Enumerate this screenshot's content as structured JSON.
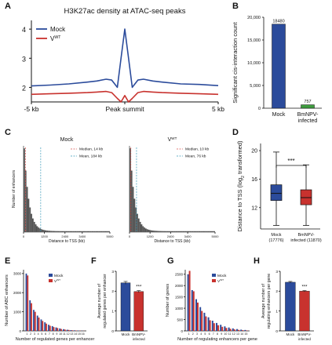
{
  "panels": [
    "A",
    "B",
    "C",
    "D",
    "E",
    "F",
    "G",
    "H"
  ],
  "colors": {
    "mock": "#2b4b9b",
    "vwt": "#c8322e",
    "gray": "#555555",
    "median_line": "#d9534f",
    "mean_line": "#3a9ab8"
  },
  "chart_data": [
    {
      "id": "A",
      "type": "line",
      "title": "H3K27ac density at ATAC-seq peaks",
      "xticks": [
        "-5 kb",
        "Peak summit",
        "5 kb"
      ],
      "yticks": [
        2,
        3,
        4
      ],
      "ylim": [
        1.5,
        4.3
      ],
      "legend": [
        {
          "name": "Mock",
          "key": "mock"
        },
        {
          "name": "VWT",
          "key": "vwt",
          "display": "V",
          "sup": "WT"
        }
      ],
      "series": [
        {
          "name": "Mock",
          "x": [
            -5,
            -4,
            -3,
            -2,
            -1.5,
            -1,
            -0.7,
            -0.4,
            -0.2,
            0,
            0.2,
            0.4,
            0.7,
            1,
            1.5,
            2,
            3,
            4,
            5
          ],
          "values": [
            2.05,
            2.08,
            2.12,
            2.18,
            2.22,
            2.28,
            2.25,
            2.0,
            3.0,
            4.0,
            3.0,
            2.0,
            2.25,
            2.28,
            2.22,
            2.18,
            2.12,
            2.1,
            2.06
          ]
        },
        {
          "name": "VWT",
          "x": [
            -5,
            -4,
            -3,
            -2,
            -1.5,
            -1,
            -0.7,
            -0.4,
            -0.2,
            0,
            0.2,
            0.4,
            0.7,
            1,
            1.5,
            2,
            3,
            4,
            5
          ],
          "values": [
            1.76,
            1.78,
            1.8,
            1.82,
            1.84,
            1.86,
            1.82,
            1.62,
            1.5,
            1.72,
            1.5,
            1.62,
            1.82,
            1.86,
            1.84,
            1.82,
            1.8,
            1.78,
            1.76
          ]
        }
      ]
    },
    {
      "id": "B",
      "type": "bar",
      "ylabel": "Significant cis-interaction count",
      "categories": [
        "Mock",
        "BmNPV-infected"
      ],
      "category_lines": [
        [
          "Mock"
        ],
        [
          "BmNPV-",
          "infected"
        ]
      ],
      "values": [
        18480,
        757
      ],
      "labels": [
        "18480",
        "757"
      ],
      "ylim": [
        0,
        20000
      ],
      "yticks": [
        "0",
        "5,000",
        "10,000",
        "15,000",
        "20,000"
      ]
    },
    {
      "id": "C",
      "type": "bar",
      "subcharts": [
        {
          "title": "Mock",
          "xlabel": "Distance to TSS (kb)",
          "ylabel": "Number of enhancers",
          "xticks": [
            "0",
            "1200",
            "2400",
            "3400",
            "5000"
          ],
          "median": "Median, 14 kb",
          "mean": "Mean, 184 kb",
          "median_value": 14,
          "mean_value": 184
        },
        {
          "title": "VWT",
          "title_display": "V",
          "title_sup": "WT",
          "xlabel": "Distance to TSS (kb)",
          "xticks": [
            "0",
            "1200",
            "2400",
            "3400",
            "5000"
          ],
          "median": "Median, 10 kb",
          "mean": "Mean, 76 kb",
          "median_value": 10,
          "mean_value": 76
        }
      ]
    },
    {
      "id": "D",
      "type": "box",
      "ylabel": "Distance to TSS (log2 transformed)",
      "ylabel_main": "Distance to TSS (log",
      "ylabel_sub": "2",
      "ylabel_tail": " transformed)",
      "yticks": [
        "12",
        "16",
        "20"
      ],
      "ylim": [
        9,
        21
      ],
      "significance": "***",
      "categories": [
        "Mock (17776)",
        "BmNPV-infected (11870)"
      ],
      "category_lines": [
        [
          "Mock",
          "(17776)"
        ],
        [
          "BmNPV-",
          "infected (11870)"
        ]
      ],
      "boxes": [
        {
          "name": "Mock",
          "min": 9.5,
          "q1": 13.0,
          "median": 14.0,
          "q3": 15.2,
          "max": 19.8
        },
        {
          "name": "BmNPV-infected",
          "min": 9.5,
          "q1": 12.4,
          "median": 13.4,
          "q3": 14.5,
          "max": 18.0
        }
      ]
    },
    {
      "id": "E",
      "type": "bar",
      "ylabel": "Number of ABC enhancers",
      "xlabel": "Number of regulated genes per enhancer",
      "x": [
        "1",
        "2",
        "3",
        "4",
        "5",
        "6",
        "7",
        "8",
        "9",
        "10",
        "11",
        "12",
        "13",
        "14",
        "15",
        "16"
      ],
      "yticks": [
        "0",
        "1000",
        "2000",
        "3000"
      ],
      "ylim": [
        0,
        3200
      ],
      "legend": [
        {
          "name": "Mock"
        },
        {
          "name": "VWT",
          "display": "V",
          "sup": "WT"
        }
      ],
      "series": [
        {
          "name": "Mock",
          "values": [
            3000,
            1600,
            1100,
            800,
            600,
            450,
            320,
            250,
            180,
            130,
            90,
            60,
            40,
            30,
            20,
            10
          ]
        },
        {
          "name": "VWT",
          "values": [
            2900,
            1450,
            1000,
            700,
            520,
            380,
            270,
            200,
            150,
            100,
            70,
            50,
            30,
            20,
            15,
            8
          ]
        }
      ]
    },
    {
      "id": "F",
      "type": "bar",
      "ylabel": "Average number of regulated genes per enhancer",
      "ylabel_lines": [
        "Average number of",
        "regulated genes per enhancer"
      ],
      "categories": [
        "Mock",
        "BmNPV-infected"
      ],
      "category_lines": [
        [
          "Mock"
        ],
        [
          "BmNPV-",
          "infected"
        ]
      ],
      "values": [
        2.42,
        1.98
      ],
      "errors": [
        0.07,
        0.05
      ],
      "yticks": [
        "0",
        "1",
        "2",
        "3"
      ],
      "ylim": [
        0,
        3
      ],
      "significance": "***"
    },
    {
      "id": "G",
      "type": "bar",
      "ylabel": "Number of genes",
      "xlabel": "Number of regulating enhancers per gene",
      "x": [
        "1",
        "2",
        "3",
        "4",
        "5",
        "6",
        "7",
        "8",
        "9",
        "10",
        "11",
        "12",
        "13",
        "14",
        "15"
      ],
      "yticks": [
        "0",
        "500",
        "1000",
        "1500",
        "2000",
        "2500"
      ],
      "ylim": [
        0,
        2700
      ],
      "legend": [
        {
          "name": "Mock"
        },
        {
          "name": "VWT",
          "display": "V",
          "sup": "WT"
        }
      ],
      "series": [
        {
          "name": "Mock",
          "values": [
            2500,
            1800,
            1400,
            1050,
            800,
            600,
            450,
            350,
            270,
            200,
            150,
            110,
            80,
            55,
            40
          ]
        },
        {
          "name": "VWT",
          "values": [
            2650,
            1750,
            1250,
            880,
            640,
            470,
            340,
            250,
            180,
            130,
            90,
            65,
            45,
            30,
            20
          ]
        }
      ]
    },
    {
      "id": "H",
      "type": "bar",
      "ylabel": "Average number of regulating enhancers per gene",
      "ylabel_lines": [
        "Average number of",
        "regulating enhancers per gene"
      ],
      "categories": [
        "Mock",
        "BmNPV-infected"
      ],
      "category_lines": [
        [
          "Mock"
        ],
        [
          "BmNPV-",
          "infected"
        ]
      ],
      "values": [
        2.45,
        2.0
      ],
      "errors": [
        0.04,
        0.03
      ],
      "yticks": [
        "0",
        "1",
        "2",
        "3"
      ],
      "ylim": [
        0,
        3
      ],
      "significance": "***"
    }
  ]
}
